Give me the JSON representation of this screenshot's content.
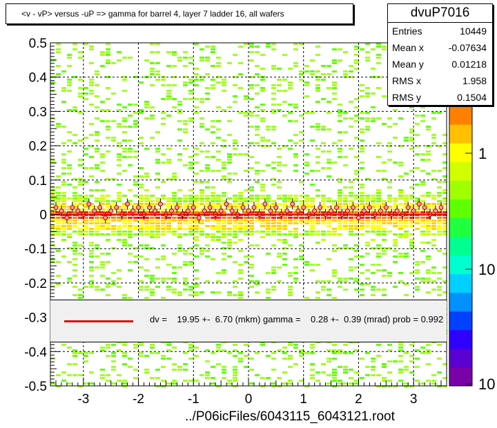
{
  "chart_data": {
    "type": "scatter",
    "title": "<v - vP>       versus  -uP =>  gamma for barrel 4, layer 7 ladder 16, all wafers",
    "xlabel": "../P06icFiles/6043115_6043121.root",
    "ylabel": "",
    "xlim": [
      -3.6,
      3.6
    ],
    "ylim": [
      -0.5,
      0.5
    ],
    "x_ticks": [
      -3,
      -2,
      -1,
      0,
      1,
      2,
      3
    ],
    "x_tick_labels": [
      "-3",
      "-2",
      "-1",
      "0",
      "1",
      "2",
      "3"
    ],
    "y_ticks": [
      -0.5,
      -0.4,
      -0.3,
      -0.2,
      -0.1,
      0,
      0.1,
      0.2,
      0.3,
      0.4,
      0.5
    ],
    "y_tick_labels": [
      "-0.5",
      "-0.4",
      "-0.3",
      "-0.2",
      "-0.1",
      "0",
      "0.1",
      "0.2",
      "0.3",
      "0.4",
      "0.5"
    ],
    "grid": true,
    "colorbar": {
      "scale": "log",
      "tick_labels": [
        "1",
        "10",
        "10"
      ]
    },
    "profile_points": [
      [
        -3.5,
        0.02
      ],
      [
        -3.4,
        0.01
      ],
      [
        -3.3,
        -0.01
      ],
      [
        -3.2,
        0.02
      ],
      [
        -3.1,
        0.01
      ],
      [
        -3.0,
        0.0
      ],
      [
        -2.9,
        0.03
      ],
      [
        -2.8,
        0.01
      ],
      [
        -2.7,
        0.02
      ],
      [
        -2.6,
        -0.01
      ],
      [
        -2.5,
        0.01
      ],
      [
        -2.4,
        0.02
      ],
      [
        -2.3,
        0.0
      ],
      [
        -2.2,
        0.03
      ],
      [
        -2.1,
        0.01
      ],
      [
        -2.0,
        0.02
      ],
      [
        -1.9,
        0.0
      ],
      [
        -1.8,
        0.02
      ],
      [
        -1.7,
        0.01
      ],
      [
        -1.6,
        0.03
      ],
      [
        -1.5,
        0.0
      ],
      [
        -1.4,
        0.01
      ],
      [
        -1.3,
        0.02
      ],
      [
        -1.2,
        0.0
      ],
      [
        -1.1,
        0.01
      ],
      [
        -1.0,
        0.02
      ],
      [
        -0.9,
        -0.01
      ],
      [
        -0.8,
        0.01
      ],
      [
        -0.7,
        0.02
      ],
      [
        -0.6,
        0.0
      ],
      [
        -0.5,
        0.01
      ],
      [
        -0.4,
        0.03
      ],
      [
        -0.3,
        0.01
      ],
      [
        -0.2,
        0.0
      ],
      [
        -0.1,
        0.02
      ],
      [
        0.0,
        0.01
      ],
      [
        0.1,
        0.02
      ],
      [
        0.2,
        0.0
      ],
      [
        0.3,
        0.03
      ],
      [
        0.4,
        0.01
      ],
      [
        0.5,
        0.02
      ],
      [
        0.6,
        0.0
      ],
      [
        0.7,
        0.01
      ],
      [
        0.8,
        0.03
      ],
      [
        0.9,
        0.01
      ],
      [
        1.0,
        0.02
      ],
      [
        1.1,
        0.0
      ],
      [
        1.2,
        0.01
      ],
      [
        1.3,
        0.02
      ],
      [
        1.4,
        0.0
      ],
      [
        1.5,
        0.01
      ],
      [
        1.6,
        0.02
      ],
      [
        1.7,
        0.0
      ],
      [
        1.8,
        0.01
      ],
      [
        1.9,
        0.02
      ],
      [
        2.0,
        -0.01
      ],
      [
        2.1,
        0.01
      ],
      [
        2.2,
        0.02
      ],
      [
        2.3,
        0.0
      ],
      [
        2.4,
        0.01
      ],
      [
        2.5,
        0.02
      ],
      [
        2.6,
        0.0
      ],
      [
        2.7,
        0.01
      ],
      [
        2.8,
        0.0
      ],
      [
        2.9,
        0.02
      ],
      [
        3.0,
        0.01
      ],
      [
        3.1,
        0.03
      ],
      [
        3.2,
        0.02
      ],
      [
        3.3,
        0.0
      ],
      [
        3.4,
        0.01
      ],
      [
        3.5,
        0.02
      ]
    ],
    "fit_line": {
      "x": [
        -3.6,
        3.6
      ],
      "y": [
        0.0,
        0.0
      ],
      "color": "#e00000"
    }
  },
  "title_box": {
    "text": "<v - vP>       versus  -uP =>  gamma for barrel 4, layer 7 ladder 16, all wafers"
  },
  "stats": {
    "name": "dvuP7016",
    "rows": [
      {
        "key": "Entries",
        "value": "10449"
      },
      {
        "key": "Mean x",
        "value": "-0.07634"
      },
      {
        "key": "Mean y",
        "value": "0.01218"
      },
      {
        "key": "RMS x",
        "value": "1.958"
      },
      {
        "key": "RMS y",
        "value": "0.1504"
      }
    ]
  },
  "fit_text": "dv =    19.95 +-  6.70 (mkm) gamma =    0.28 +-  0.39 (mrad) prob = 0.992"
}
